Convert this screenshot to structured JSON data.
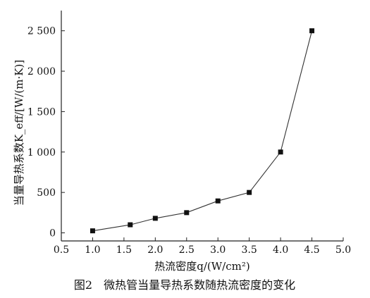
{
  "chart_data": {
    "type": "line",
    "title": "",
    "xlabel": "热流密度q/(W/cm²)",
    "ylabel": "当量导热系数K_eff/[W/(m·K)]",
    "caption": "图2　微热管当量导热系数随热流密度的变化",
    "xlim": [
      0.5,
      5.0
    ],
    "ylim": [
      -100,
      2750
    ],
    "x_ticks": [
      0.5,
      1.0,
      1.5,
      2.0,
      2.5,
      3.0,
      3.5,
      4.0,
      4.5,
      5.0
    ],
    "x_tick_labels": [
      "0.5",
      "1.0",
      "1.5",
      "2.0",
      "2.5",
      "3.0",
      "3.5",
      "4.0",
      "4.5",
      "5.0"
    ],
    "y_ticks": [
      0,
      500,
      1000,
      1500,
      2000,
      2500
    ],
    "y_tick_labels": [
      "0",
      "500",
      "1 000",
      "1 500",
      "2 000",
      "2 500"
    ],
    "grid": false,
    "series": [
      {
        "marker": "square",
        "color": "#111111",
        "x": [
          1.0,
          1.6,
          2.0,
          2.5,
          3.0,
          3.5,
          4.0,
          4.5
        ],
        "y": [
          25,
          100,
          180,
          250,
          395,
          500,
          1000,
          2500
        ]
      }
    ]
  }
}
